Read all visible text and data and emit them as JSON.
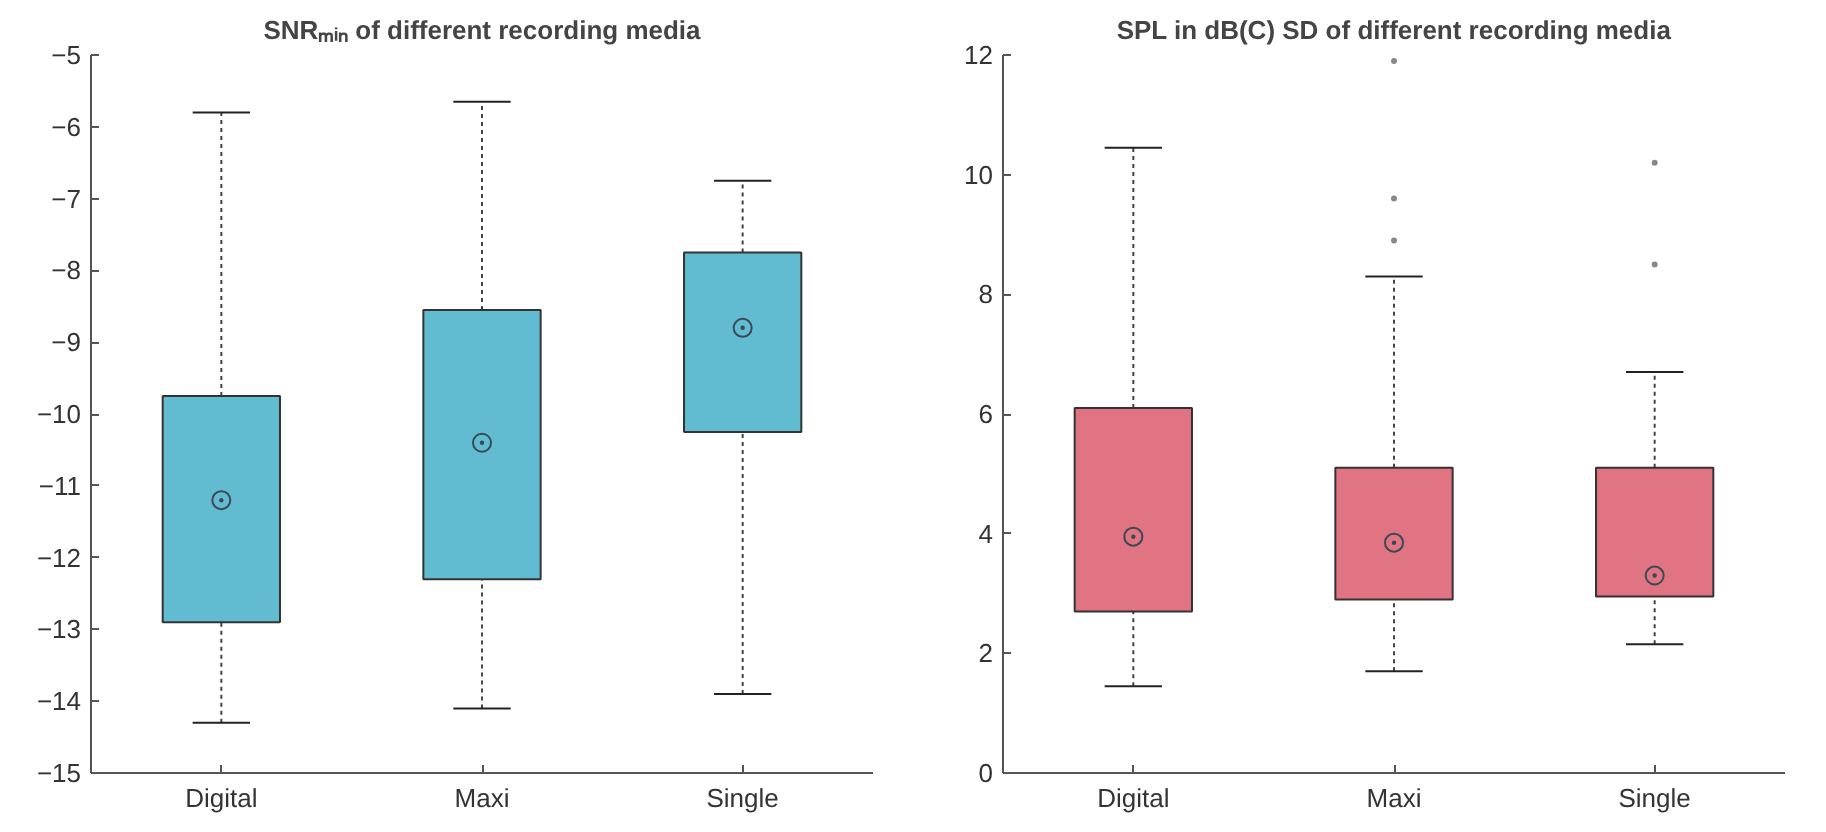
{
  "chart_data": [
    {
      "type": "box",
      "title": "SNRₘᵢₙ of different recording media",
      "categories": [
        "Digital",
        "Maxi",
        "Single"
      ],
      "color": "#62bcd1",
      "ylim": [
        -15,
        -5
      ],
      "yticks": [
        -15,
        -14,
        -13,
        -12,
        -11,
        -10,
        -9,
        -8,
        -7,
        -6,
        -5
      ],
      "grid": false,
      "boxes": [
        {
          "low": -14.3,
          "q1": -12.9,
          "median": -11.2,
          "q3": -9.75,
          "high": -5.8
        },
        {
          "low": -14.1,
          "q1": -12.3,
          "median": -10.4,
          "q3": -8.55,
          "high": -5.65
        },
        {
          "low": -13.9,
          "q1": -10.25,
          "median": -8.8,
          "q3": -7.75,
          "high": -6.75
        }
      ]
    },
    {
      "type": "box",
      "title": "SPL in dB(C) SD of different recording media",
      "categories": [
        "Digital",
        "Maxi",
        "Single"
      ],
      "color": "#e07482",
      "ylim": [
        0,
        12
      ],
      "yticks": [
        0,
        2,
        4,
        6,
        8,
        10,
        12
      ],
      "grid": false,
      "boxes": [
        {
          "low": 1.45,
          "q1": 2.7,
          "median": 3.95,
          "q3": 6.1,
          "high": 10.45
        },
        {
          "low": 1.7,
          "q1": 2.9,
          "median": 3.85,
          "q3": 5.1,
          "high": 8.3,
          "outliers": [
            8.9,
            9.6,
            11.9
          ]
        },
        {
          "low": 2.15,
          "q1": 2.95,
          "median": 3.3,
          "q3": 5.1,
          "high": 6.7,
          "outliers": [
            8.5,
            10.2
          ]
        }
      ]
    }
  ]
}
